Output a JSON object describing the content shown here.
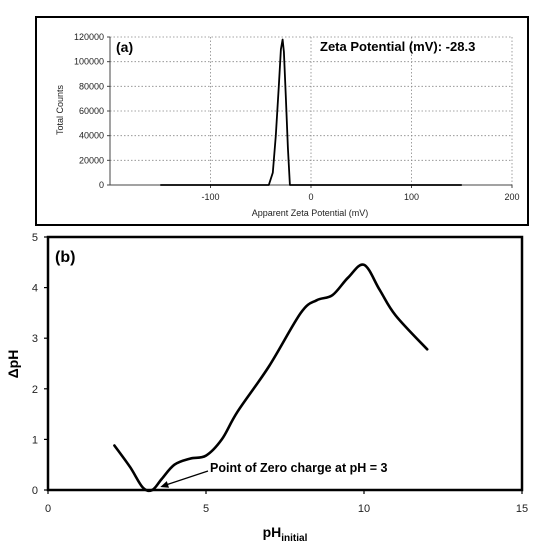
{
  "chart_data": [
    {
      "type": "line",
      "panel_label": "(a)",
      "annotation": "Zeta Potential (mV): -28.3",
      "xlabel": "Apparent Zeta Potential (mV)",
      "ylabel": "Total Counts",
      "xlim": [
        -200,
        200
      ],
      "ylim": [
        0,
        120000
      ],
      "x_ticks": [
        -100,
        0,
        100,
        200
      ],
      "y_ticks": [
        0,
        20000,
        40000,
        60000,
        80000,
        100000,
        120000
      ],
      "grid": true,
      "series": [
        {
          "color": "#000000",
          "x": [
            -150,
            -42,
            -38,
            -35,
            -32,
            -30,
            -28.3,
            -27,
            -25,
            -23,
            -21,
            150
          ],
          "y": [
            0,
            0,
            10000,
            40000,
            80000,
            110000,
            118000,
            108000,
            70000,
            30000,
            0,
            0
          ]
        }
      ]
    },
    {
      "type": "line",
      "panel_label": "(b)",
      "xlabel_main": "pH",
      "xlabel_sub": "initial",
      "ylabel": "ΔpH",
      "xlim": [
        0,
        15
      ],
      "ylim": [
        0,
        5
      ],
      "x_ticks": [
        0,
        5,
        10,
        15
      ],
      "y_ticks": [
        0,
        1,
        2,
        3,
        4,
        5
      ],
      "grid": false,
      "annotation": "Point of Zero charge at pH = 3",
      "annotation_target": [
        3.3,
        0.0
      ],
      "series": [
        {
          "color": "#000000",
          "x": [
            2.1,
            2.6,
            3.0,
            3.3,
            3.6,
            4.0,
            4.5,
            5.0,
            5.5,
            6.0,
            7.0,
            8.0,
            8.5,
            9.0,
            9.5,
            10.0,
            10.5,
            11.0,
            12.0
          ],
          "y": [
            0.88,
            0.45,
            0.05,
            0.0,
            0.22,
            0.5,
            0.62,
            0.68,
            1.0,
            1.55,
            2.45,
            3.5,
            3.75,
            3.85,
            4.2,
            4.45,
            3.95,
            3.45,
            2.78
          ]
        }
      ]
    }
  ]
}
